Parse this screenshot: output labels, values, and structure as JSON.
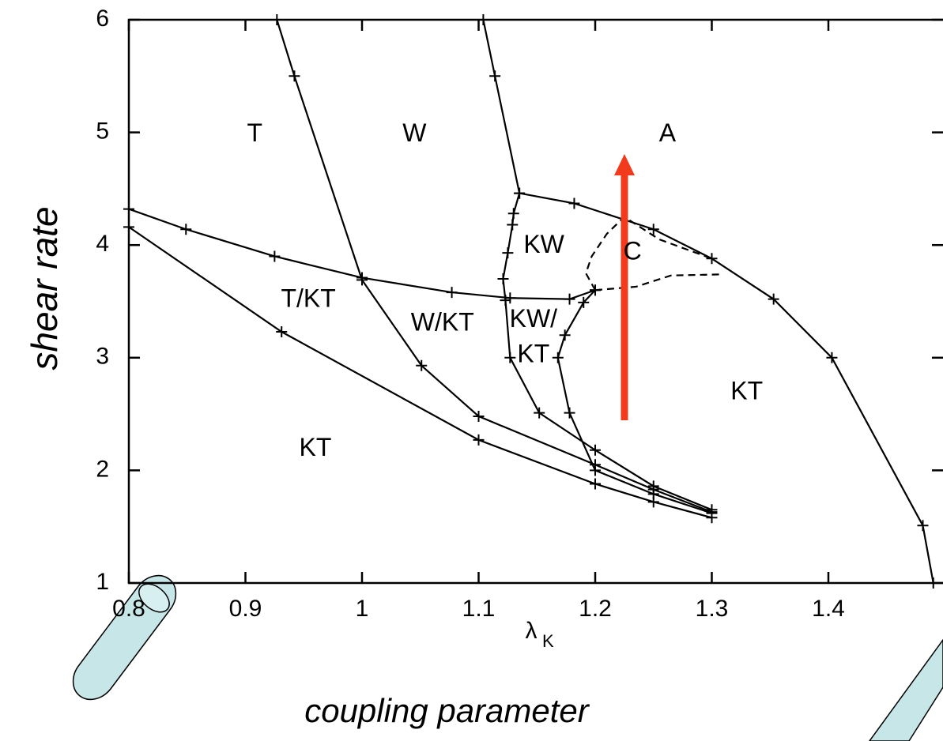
{
  "chart_data": {
    "type": "line",
    "ylabel": "shear rate",
    "xlabel": {
      "symbol": "λ",
      "subscript": "K"
    },
    "xlabel2": "coupling parameter",
    "xlim": [
      0.8,
      1.5
    ],
    "ylim": [
      1,
      6
    ],
    "xticks": [
      0.8,
      0.9,
      1,
      1.1,
      1.2,
      1.3,
      1.4
    ],
    "yticks": [
      1,
      2,
      3,
      4,
      5,
      6
    ],
    "color": "#000000",
    "series": [
      {
        "x": [
          0.927,
          0.942,
          1.0,
          1.051,
          1.1,
          1.2,
          1.25,
          1.3
        ],
        "values": [
          6.0,
          5.5,
          3.69,
          2.93,
          2.48,
          2.05,
          1.83,
          1.63
        ]
      },
      {
        "x": [
          1.104,
          1.114,
          1.135,
          1.13,
          1.129,
          1.125,
          1.121,
          1.123,
          1.127,
          1.152,
          1.2,
          1.25,
          1.3
        ],
        "values": [
          6.0,
          5.5,
          4.46,
          4.28,
          4.18,
          3.93,
          3.7,
          3.51,
          3.0,
          2.51,
          2.18,
          1.86,
          1.65
        ]
      },
      {
        "x": [
          1.135,
          1.182,
          1.25,
          1.3,
          1.353,
          1.403,
          1.481,
          1.49
        ],
        "values": [
          4.46,
          4.37,
          4.14,
          3.88,
          3.52,
          3.0,
          1.51,
          1.0
        ]
      },
      {
        "x": [
          0.8,
          0.849,
          0.925,
          1.0,
          1.077,
          1.127,
          1.178,
          1.2
        ],
        "values": [
          4.32,
          4.14,
          3.9,
          3.71,
          3.58,
          3.53,
          3.52,
          3.6
        ]
      },
      {
        "x": [
          1.2,
          1.19,
          1.174,
          1.168,
          1.178,
          1.2,
          1.25,
          1.3
        ],
        "values": [
          3.6,
          3.49,
          3.2,
          3.0,
          2.51,
          2.0,
          1.79,
          1.62
        ]
      },
      {
        "x": [
          0.8,
          0.931,
          1.1,
          1.2,
          1.25,
          1.3
        ],
        "values": [
          4.16,
          3.23,
          2.27,
          1.88,
          1.72,
          1.58
        ]
      }
    ],
    "dashed_series": [
      {
        "x": [
          1.2,
          1.192,
          1.197,
          1.21,
          1.225,
          1.255,
          1.3
        ],
        "values": [
          3.6,
          3.75,
          3.9,
          4.1,
          4.25,
          4.05,
          3.88
        ]
      },
      {
        "x": [
          1.2,
          1.235,
          1.265,
          1.31
        ],
        "values": [
          3.6,
          3.63,
          3.73,
          3.74
        ]
      }
    ],
    "annotations": [
      {
        "text": "T",
        "x": 0.908,
        "y": 4.98
      },
      {
        "text": "W",
        "x": 1.045,
        "y": 4.98
      },
      {
        "text": "A",
        "x": 1.262,
        "y": 4.98
      },
      {
        "text": "KW",
        "x": 1.156,
        "y": 3.99
      },
      {
        "text": "C",
        "x": 1.232,
        "y": 3.93
      },
      {
        "text": "T/KT",
        "x": 0.954,
        "y": 3.51
      },
      {
        "text": "W/KT",
        "x": 1.069,
        "y": 3.3
      },
      {
        "text": "KW/",
        "x": 1.147,
        "y": 3.33
      },
      {
        "text": "KT",
        "x": 1.147,
        "y": 3.02
      },
      {
        "text": "KT",
        "x": 1.33,
        "y": 2.69
      },
      {
        "text": "KT",
        "x": 0.96,
        "y": 2.19
      }
    ]
  }
}
